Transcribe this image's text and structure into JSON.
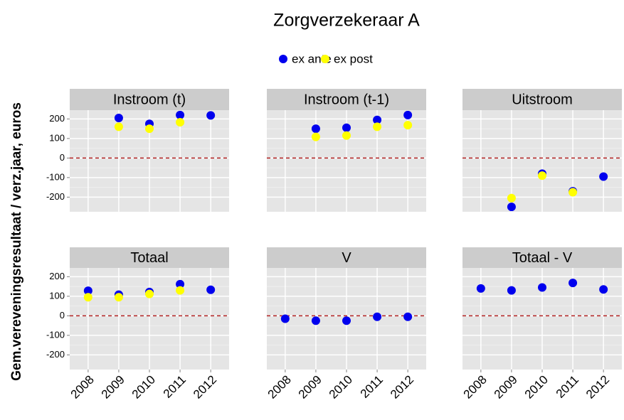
{
  "chart_data": {
    "type": "scatter",
    "title": "Zorgverzekeraar A",
    "y_label": "Gem.vereveningsresultaat / verz.jaar, euros",
    "series": [
      {
        "name": "ex ante",
        "color": "#0000ee"
      },
      {
        "name": "ex post",
        "color": "#ffff00"
      }
    ],
    "categories": [
      "2008",
      "2009",
      "2010",
      "2011",
      "2012"
    ],
    "ylim": [
      -275,
      245
    ],
    "yticks": [
      -200,
      -100,
      0,
      100,
      200
    ],
    "grid": true,
    "hline": 0,
    "hline_color": "#b22222",
    "facets": [
      {
        "title": "Instroom (t)",
        "series": [
          {
            "values": [
              null,
              205,
              175,
              220,
              218
            ]
          },
          {
            "values": [
              null,
              160,
              150,
              183,
              null
            ]
          }
        ]
      },
      {
        "title": "Instroom (t-1)",
        "series": [
          {
            "values": [
              null,
              150,
              155,
              195,
              220
            ]
          },
          {
            "values": [
              null,
              108,
              115,
              160,
              168
            ]
          }
        ]
      },
      {
        "title": "Uitstroom",
        "series": [
          {
            "values": [
              null,
              -250,
              -80,
              -170,
              -95
            ]
          },
          {
            "values": [
              null,
              -205,
              -90,
              -175,
              null
            ]
          }
        ]
      },
      {
        "title": "Totaal",
        "series": [
          {
            "values": [
              128,
              108,
              122,
              162,
              133
            ]
          },
          {
            "values": [
              95,
              95,
              112,
              130,
              null
            ]
          }
        ]
      },
      {
        "title": "V",
        "series": [
          {
            "values": [
              -15,
              -25,
              -25,
              -5,
              -5
            ]
          },
          {
            "values": [
              null,
              null,
              null,
              null,
              null
            ]
          }
        ]
      },
      {
        "title": "Totaal - V",
        "series": [
          {
            "values": [
              140,
              130,
              145,
              168,
              135
            ]
          },
          {
            "values": [
              null,
              null,
              null,
              null,
              null
            ]
          }
        ]
      }
    ]
  }
}
